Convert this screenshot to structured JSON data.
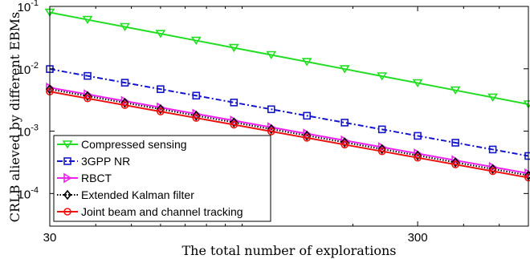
{
  "chart_data": {
    "type": "line",
    "xlabel": "The total number of explorations",
    "ylabel": "CRLB alieved by different EBMs",
    "xscale": "log",
    "yscale": "log",
    "xlim": [
      30,
      600
    ],
    "ylim": [
      3e-05,
      0.1
    ],
    "grid": false,
    "legend_position": "bottom-left",
    "x_ticks": [
      {
        "value": 30,
        "label": "30"
      },
      {
        "value": 300,
        "label": "300"
      }
    ],
    "y_ticks": [
      {
        "value": 0.0001,
        "base": "10",
        "exp": "-4"
      },
      {
        "value": 0.001,
        "base": "10",
        "exp": "-3"
      },
      {
        "value": 0.01,
        "base": "10",
        "exp": "-2"
      },
      {
        "value": 0.1,
        "base": "10",
        "exp": "-1"
      }
    ],
    "x": [
      30,
      38,
      48,
      60,
      75,
      95,
      120,
      150,
      190,
      240,
      300,
      380,
      480,
      600
    ],
    "series": [
      {
        "name": "Compressed sensing",
        "color": "#22dd22",
        "dash": "solid",
        "marker": "triangle-down",
        "y_start": 0.08,
        "y_end": 0.0027
      },
      {
        "name": "3GPP NR",
        "color": "#1515cc",
        "dash": "dashdot",
        "marker": "square",
        "y_start": 0.0099,
        "y_end": 0.0004
      },
      {
        "name": "RBCT",
        "color": "#ee22ee",
        "dash": "solid",
        "marker": "triangle-right",
        "y_start": 0.005,
        "y_end": 0.00021
      },
      {
        "name": "Extended Kalman filter",
        "color": "#000000",
        "dash": "dotted",
        "marker": "diamond",
        "y_start": 0.0047,
        "y_end": 0.000195
      },
      {
        "name": "Joint beam and channel tracking",
        "color": "#ee1111",
        "dash": "solid",
        "marker": "circle",
        "y_start": 0.0043,
        "y_end": 0.00018
      }
    ]
  }
}
